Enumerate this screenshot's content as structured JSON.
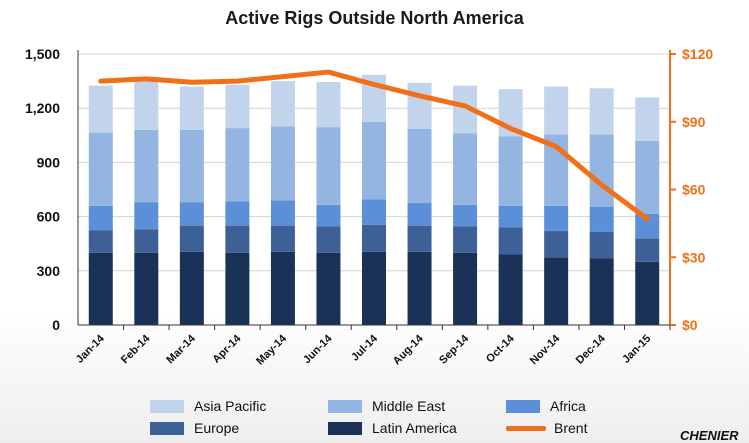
{
  "chart_data": {
    "type": "bar",
    "stacked": true,
    "title": "Active Rigs Outside North America",
    "categories": [
      "Jan-14",
      "Feb-14",
      "Mar-14",
      "Apr-14",
      "May-14",
      "Jun-14",
      "Jul-14",
      "Aug-14",
      "Sep-14",
      "Oct-14",
      "Nov-14",
      "Dec-14",
      "Jan-15"
    ],
    "series": [
      {
        "name": "Latin America",
        "color": "#1b3258",
        "values": [
          400,
          400,
          405,
          400,
          405,
          400,
          405,
          405,
          400,
          390,
          375,
          370,
          350
        ]
      },
      {
        "name": "Europe",
        "color": "#3d6096",
        "values": [
          125,
          130,
          145,
          150,
          145,
          145,
          150,
          145,
          145,
          150,
          145,
          145,
          130
        ]
      },
      {
        "name": "Africa",
        "color": "#5b8fd8",
        "values": [
          135,
          150,
          130,
          135,
          140,
          120,
          140,
          125,
          120,
          120,
          140,
          140,
          135
        ]
      },
      {
        "name": "Middle East",
        "color": "#94b5e2",
        "values": [
          405,
          400,
          400,
          405,
          410,
          430,
          430,
          410,
          395,
          385,
          395,
          400,
          405
        ]
      },
      {
        "name": "Asia Pacific",
        "color": "#c2d3ec",
        "values": [
          260,
          275,
          240,
          240,
          250,
          250,
          260,
          255,
          265,
          260,
          265,
          255,
          240
        ]
      }
    ],
    "line": {
      "name": "Brent",
      "color": "#f07017",
      "axis": "right",
      "values": [
        108,
        109,
        107.5,
        108,
        110,
        112,
        106.5,
        101.5,
        97,
        87,
        79,
        62,
        47
      ]
    },
    "ylim": [
      0,
      1500
    ],
    "yticks": [
      "0",
      "300",
      "600",
      "900",
      "1,200",
      "1,500"
    ],
    "y2lim": [
      0,
      120
    ],
    "y2ticks": [
      "$0",
      "$30",
      "$60",
      "$90",
      "$120"
    ],
    "grid": true,
    "legend": "bottom"
  },
  "footer": {
    "brand": "CHENIER"
  }
}
